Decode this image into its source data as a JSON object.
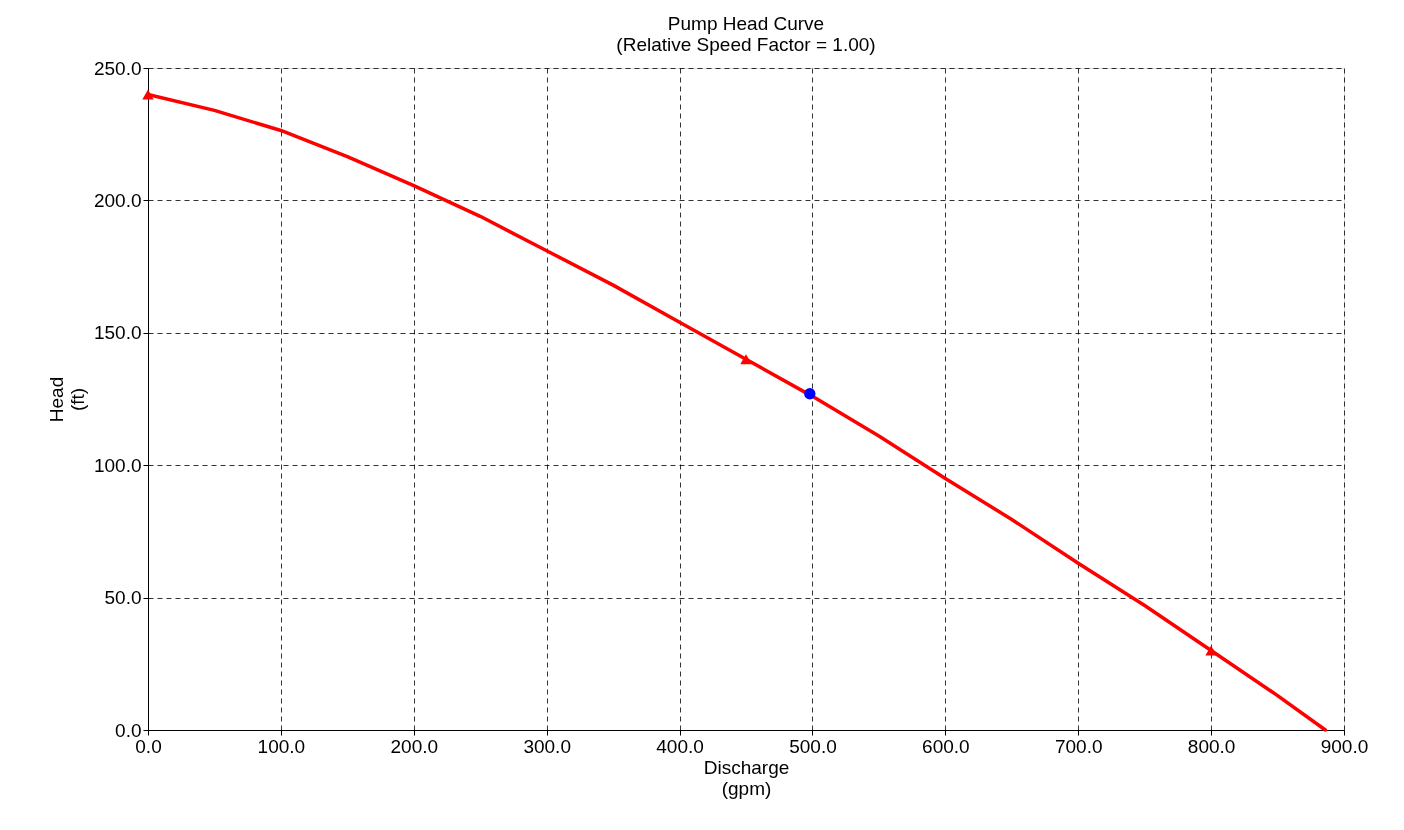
{
  "chart_data": {
    "type": "line",
    "title": "Pump Head Curve",
    "subtitle": "(Relative Speed Factor = 1.00)",
    "xlabel": "Discharge\n(gpm)",
    "ylabel": "Head\n(ft)",
    "xlim": [
      0,
      900
    ],
    "ylim": [
      0,
      250
    ],
    "xticks": [
      {
        "value": 0,
        "label": "0.0"
      },
      {
        "value": 100,
        "label": "100.0"
      },
      {
        "value": 200,
        "label": "200.0"
      },
      {
        "value": 300,
        "label": "300.0"
      },
      {
        "value": 400,
        "label": "400.0"
      },
      {
        "value": 500,
        "label": "500.0"
      },
      {
        "value": 600,
        "label": "600.0"
      },
      {
        "value": 700,
        "label": "700.0"
      },
      {
        "value": 800,
        "label": "800.0"
      },
      {
        "value": 900,
        "label": "900.0"
      }
    ],
    "yticks": [
      {
        "value": 0,
        "label": "0.0"
      },
      {
        "value": 50,
        "label": "50.0"
      },
      {
        "value": 100,
        "label": "100.0"
      },
      {
        "value": 150,
        "label": "150.0"
      },
      {
        "value": 200,
        "label": "200.0"
      },
      {
        "value": 250,
        "label": "250.0"
      }
    ],
    "grid": true,
    "series": [
      {
        "color": "#ff0000",
        "marker": "none",
        "x": [
          0,
          50,
          100,
          150,
          200,
          250,
          300,
          350,
          400,
          450,
          500,
          550,
          600,
          650,
          700,
          750,
          800,
          850,
          886
        ],
        "values": [
          240,
          234,
          226.4,
          216.5,
          205.6,
          194,
          181,
          168,
          154,
          140,
          126,
          111,
          95,
          79.5,
          63,
          47,
          30,
          13,
          0
        ]
      },
      {
        "type": "scatter",
        "color": "#ff0000",
        "marker": "triangle",
        "x": [
          0,
          450,
          800
        ],
        "values": [
          240,
          140,
          30
        ]
      },
      {
        "type": "scatter",
        "color": "#0000ff",
        "marker": "circle",
        "x": [
          498
        ],
        "values": [
          127
        ]
      }
    ]
  }
}
